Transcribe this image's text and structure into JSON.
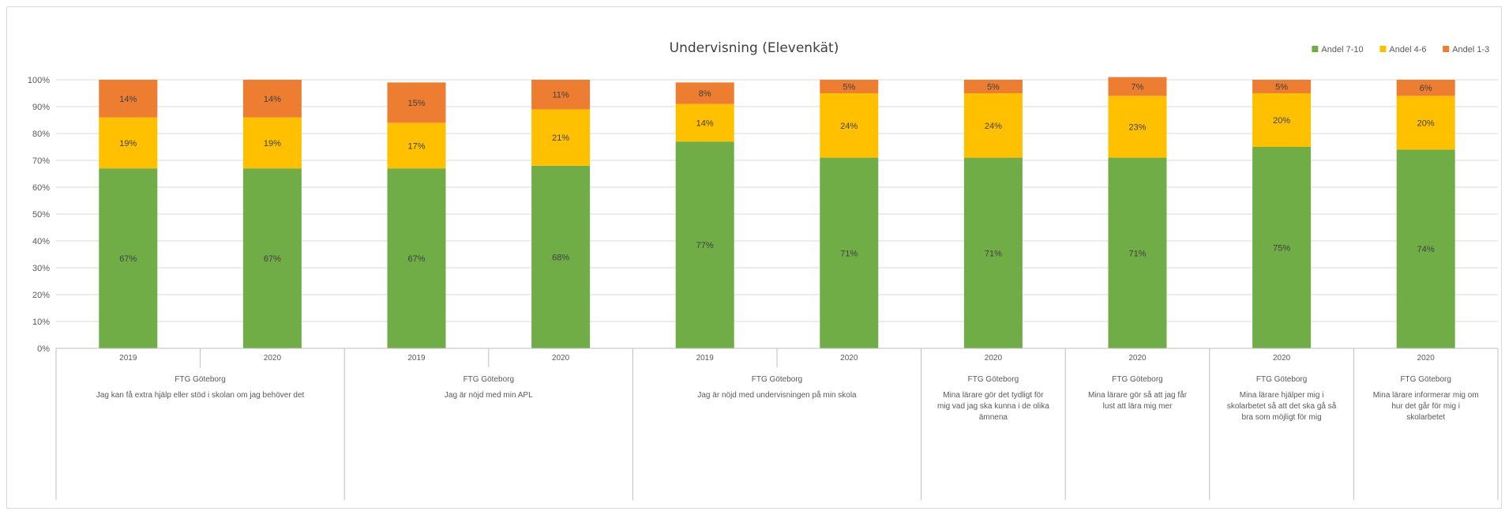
{
  "chart_data": {
    "type": "bar",
    "stacked": "percent",
    "title": "Undervisning (Elevenkät)",
    "legend_position": "top-right",
    "grid": true,
    "ylim": [
      0,
      100
    ],
    "y_ticks": [
      "0%",
      "10%",
      "20%",
      "30%",
      "40%",
      "50%",
      "60%",
      "70%",
      "80%",
      "90%",
      "100%"
    ],
    "series": [
      {
        "name": "Andel 7-10",
        "color": "#70ad47",
        "values": [
          67,
          67,
          67,
          68,
          77,
          71,
          71,
          71,
          75,
          74
        ],
        "labels": [
          "67%",
          "67%",
          "67%",
          "68%",
          "77%",
          "71%",
          "71%",
          "71%",
          "75%",
          "74%"
        ]
      },
      {
        "name": "Andel 4-6",
        "color": "#ffc000",
        "values": [
          19,
          19,
          17,
          21,
          14,
          24,
          24,
          23,
          20,
          20
        ],
        "labels": [
          "19%",
          "19%",
          "17%",
          "21%",
          "14%",
          "24%",
          "24%",
          "23%",
          "20%",
          "20%"
        ]
      },
      {
        "name": "Andel 1-3",
        "color": "#ed7d31",
        "values": [
          14,
          14,
          15,
          11,
          8,
          5,
          5,
          7,
          5,
          6
        ],
        "labels": [
          "14%",
          "14%",
          "15%",
          "11%",
          "8%",
          "5%",
          "5%",
          "7%",
          "5%",
          "6%"
        ]
      }
    ],
    "categories": [
      {
        "year": "2019",
        "school": "FTG Göteborg",
        "question": "Jag kan få extra hjälp eller stöd i skolan om jag behöver det"
      },
      {
        "year": "2020",
        "school": "FTG Göteborg",
        "question": "Jag kan få extra hjälp eller stöd i skolan om jag behöver det"
      },
      {
        "year": "2019",
        "school": "FTG Göteborg",
        "question": "Jag är nöjd med min APL"
      },
      {
        "year": "2020",
        "school": "FTG Göteborg",
        "question": "Jag är nöjd med min APL"
      },
      {
        "year": "2019",
        "school": "FTG Göteborg",
        "question": "Jag är nöjd med undervisningen på min skola"
      },
      {
        "year": "2020",
        "school": "FTG Göteborg",
        "question": "Jag är nöjd med undervisningen på min skola"
      },
      {
        "year": "2020",
        "school": "FTG Göteborg",
        "question": "Mina lärare gör det tydligt för mig vad jag ska kunna i de olika ämnena"
      },
      {
        "year": "2020",
        "school": "FTG Göteborg",
        "question": "Mina lärare gör så att jag får lust att lära mig mer"
      },
      {
        "year": "2020",
        "school": "FTG Göteborg",
        "question": "Mina lärare hjälper mig i skolarbetet så att det ska gå så bra som möjligt för mig"
      },
      {
        "year": "2020",
        "school": "FTG Göteborg",
        "question": "Mina lärare informerar mig om hur det går för mig i skolarbetet"
      }
    ],
    "groups": [
      {
        "school": "FTG Göteborg",
        "question": "Jag kan få extra hjälp eller stöd i skolan om jag behöver det",
        "count": 2
      },
      {
        "school": "FTG Göteborg",
        "question": "Jag är nöjd med min APL",
        "count": 2
      },
      {
        "school": "FTG Göteborg",
        "question": "Jag är nöjd med undervisningen på min skola",
        "count": 2
      },
      {
        "school": "FTG Göteborg",
        "question": "Mina lärare gör det tydligt för mig vad jag ska kunna i de olika ämnena",
        "count": 1
      },
      {
        "school": "FTG Göteborg",
        "question": "Mina lärare gör så att jag får lust att lära mig mer",
        "count": 1
      },
      {
        "school": "FTG Göteborg",
        "question": "Mina lärare hjälper mig i skolarbetet så att det ska gå så bra som möjligt för mig",
        "count": 1
      },
      {
        "school": "FTG Göteborg",
        "question": "Mina lärare informerar mig om hur det går för mig i skolarbetet",
        "count": 1
      }
    ]
  }
}
